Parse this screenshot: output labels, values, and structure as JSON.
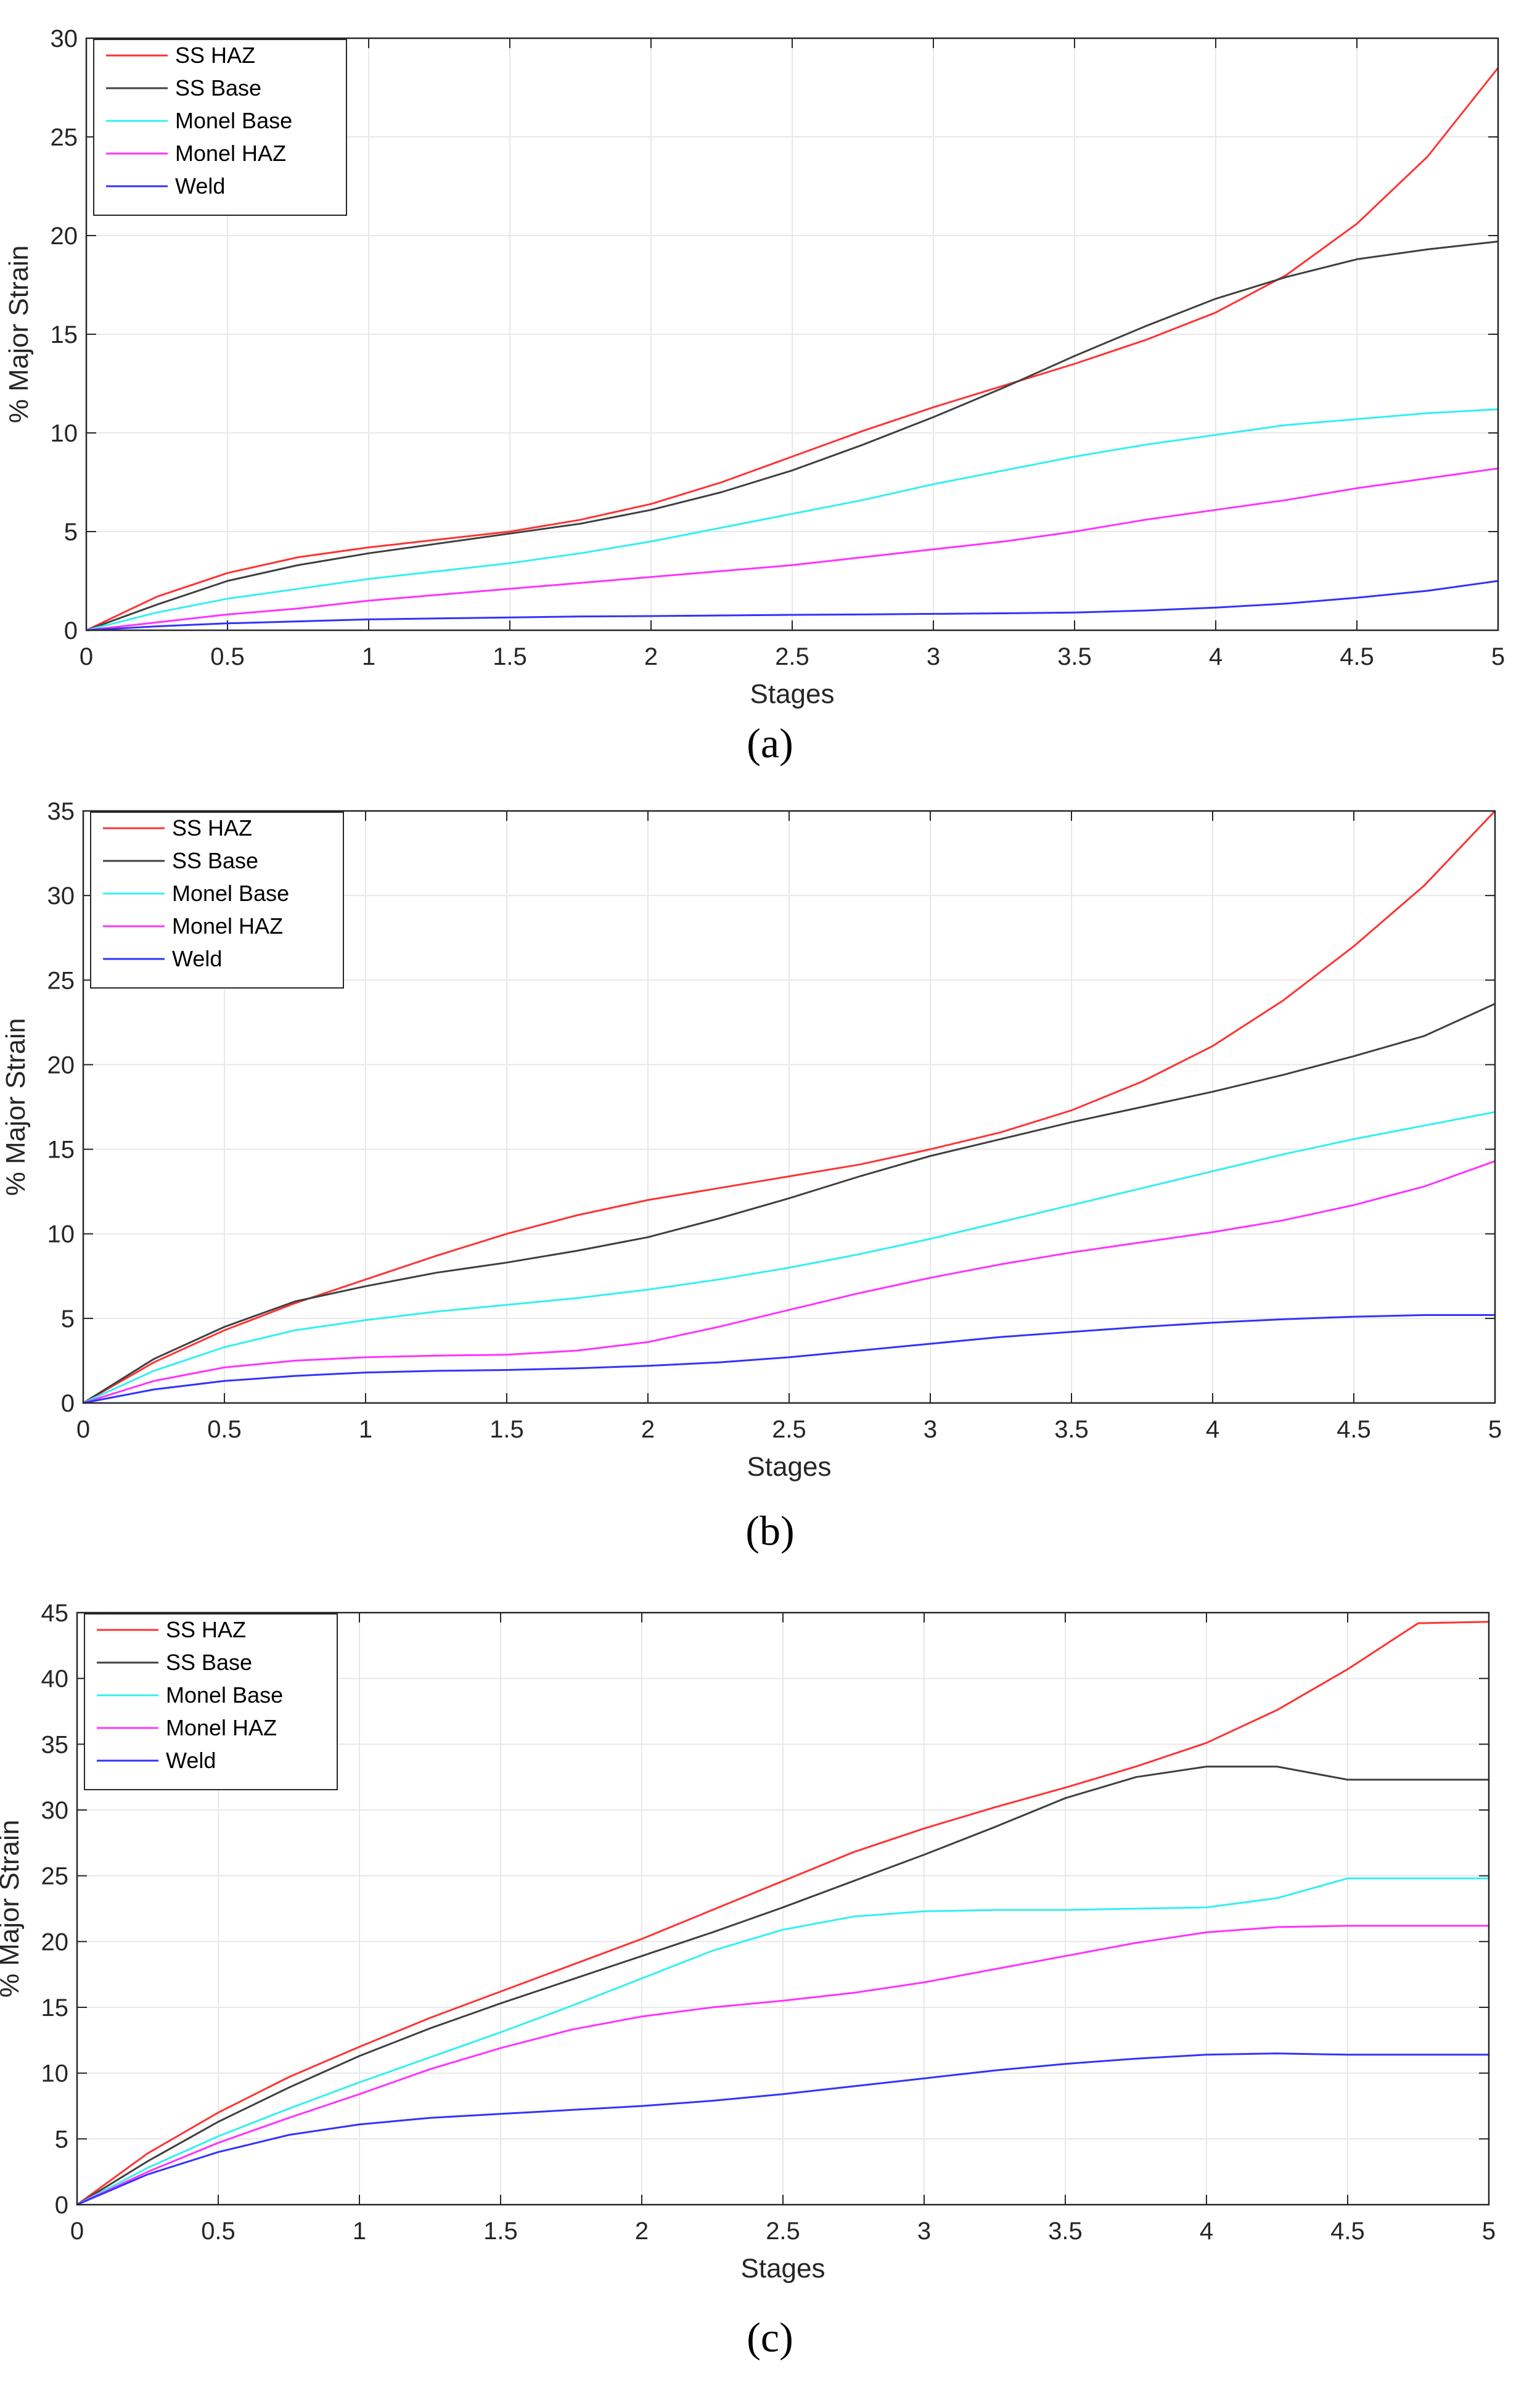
{
  "figure": {
    "panel_count": 3
  },
  "colors": {
    "SS HAZ": "#ff3333",
    "SS Base": "#404040",
    "Monel Base": "#33f0f0",
    "Monel HAZ": "#ff33ff",
    "Weld": "#3333ff",
    "grid": "#e8e8e8",
    "axis": "#262626"
  },
  "chart_data": [
    {
      "type": "line",
      "panel_label": "(a)",
      "xlabel": "Stages",
      "ylabel": "% Major Strain",
      "xlim": [
        0,
        5
      ],
      "ylim": [
        0,
        30
      ],
      "xticks": [
        0,
        0.5,
        1,
        1.5,
        2,
        2.5,
        3,
        3.5,
        4,
        4.5,
        5
      ],
      "xtick_labels": [
        "0",
        "0.5",
        "1",
        "1.5",
        "2",
        "2.5",
        "3",
        "3.5",
        "4",
        "4.5",
        "5"
      ],
      "yticks": [
        0,
        5,
        10,
        15,
        20,
        25,
        30
      ],
      "ytick_labels": [
        "0",
        "5",
        "10",
        "15",
        "20",
        "25",
        "30"
      ],
      "grid": true,
      "legend_position": "top-left",
      "x": [
        0,
        0.25,
        0.5,
        0.75,
        1,
        1.25,
        1.5,
        1.75,
        2,
        2.25,
        2.5,
        2.75,
        3,
        3.25,
        3.5,
        3.75,
        4,
        4.25,
        4.5,
        4.75,
        5
      ],
      "series": [
        {
          "name": "SS HAZ",
          "values": [
            0,
            1.7,
            2.9,
            3.7,
            4.2,
            4.6,
            5.0,
            5.6,
            6.4,
            7.5,
            8.8,
            10.1,
            11.3,
            12.4,
            13.5,
            14.7,
            16.1,
            18.0,
            20.6,
            24.0,
            28.5
          ]
        },
        {
          "name": "SS Base",
          "values": [
            0,
            1.3,
            2.5,
            3.3,
            3.9,
            4.4,
            4.9,
            5.4,
            6.1,
            7.0,
            8.1,
            9.4,
            10.8,
            12.3,
            13.9,
            15.4,
            16.8,
            17.9,
            18.8,
            19.3,
            19.7
          ]
        },
        {
          "name": "Monel Base",
          "values": [
            0,
            0.9,
            1.6,
            2.1,
            2.6,
            3.0,
            3.4,
            3.9,
            4.5,
            5.2,
            5.9,
            6.6,
            7.4,
            8.1,
            8.8,
            9.4,
            9.9,
            10.4,
            10.7,
            11.0,
            11.2
          ]
        },
        {
          "name": "Monel HAZ",
          "values": [
            0,
            0.4,
            0.8,
            1.1,
            1.5,
            1.8,
            2.1,
            2.4,
            2.7,
            3.0,
            3.3,
            3.7,
            4.1,
            4.5,
            5.0,
            5.6,
            6.1,
            6.6,
            7.2,
            7.7,
            8.2
          ]
        },
        {
          "name": "Weld",
          "values": [
            0,
            0.2,
            0.35,
            0.45,
            0.55,
            0.6,
            0.65,
            0.7,
            0.72,
            0.75,
            0.78,
            0.8,
            0.83,
            0.86,
            0.9,
            1.0,
            1.15,
            1.35,
            1.65,
            2.0,
            2.5
          ]
        }
      ]
    },
    {
      "type": "line",
      "panel_label": "(b)",
      "xlabel": "Stages",
      "ylabel": "% Major Strain",
      "xlim": [
        0,
        5
      ],
      "ylim": [
        0,
        35
      ],
      "xticks": [
        0,
        0.5,
        1,
        1.5,
        2,
        2.5,
        3,
        3.5,
        4,
        4.5,
        5
      ],
      "xtick_labels": [
        "0",
        "0.5",
        "1",
        "1.5",
        "2",
        "2.5",
        "3",
        "3.5",
        "4",
        "4.5",
        "5"
      ],
      "yticks": [
        0,
        5,
        10,
        15,
        20,
        25,
        30,
        35
      ],
      "ytick_labels": [
        "0",
        "5",
        "10",
        "15",
        "20",
        "25",
        "30",
        "35"
      ],
      "grid": true,
      "legend_position": "top-left",
      "x": [
        0,
        0.25,
        0.5,
        0.75,
        1,
        1.25,
        1.5,
        1.75,
        2,
        2.25,
        2.5,
        2.75,
        3,
        3.25,
        3.5,
        3.75,
        4,
        4.25,
        4.5,
        4.75,
        5
      ],
      "series": [
        {
          "name": "SS HAZ",
          "values": [
            0,
            2.4,
            4.3,
            5.9,
            7.3,
            8.7,
            10.0,
            11.1,
            12.0,
            12.7,
            13.4,
            14.1,
            15.0,
            16.0,
            17.3,
            19.0,
            21.1,
            23.8,
            27.0,
            30.6,
            35.0
          ]
        },
        {
          "name": "SS Base",
          "values": [
            0,
            2.6,
            4.5,
            6.0,
            6.9,
            7.7,
            8.3,
            9.0,
            9.8,
            10.9,
            12.1,
            13.4,
            14.6,
            15.6,
            16.6,
            17.5,
            18.4,
            19.4,
            20.5,
            21.7,
            23.6
          ]
        },
        {
          "name": "Monel Base",
          "values": [
            0,
            1.9,
            3.3,
            4.3,
            4.9,
            5.4,
            5.8,
            6.2,
            6.7,
            7.3,
            8.0,
            8.8,
            9.7,
            10.7,
            11.7,
            12.7,
            13.7,
            14.7,
            15.6,
            16.4,
            17.2
          ]
        },
        {
          "name": "Monel HAZ",
          "values": [
            0,
            1.3,
            2.1,
            2.5,
            2.7,
            2.8,
            2.85,
            3.1,
            3.6,
            4.5,
            5.5,
            6.5,
            7.4,
            8.2,
            8.9,
            9.5,
            10.1,
            10.8,
            11.7,
            12.8,
            14.3
          ]
        },
        {
          "name": "Weld",
          "values": [
            0,
            0.8,
            1.3,
            1.6,
            1.8,
            1.9,
            1.95,
            2.05,
            2.2,
            2.4,
            2.7,
            3.1,
            3.5,
            3.9,
            4.2,
            4.5,
            4.75,
            4.95,
            5.1,
            5.2,
            5.2
          ]
        }
      ]
    },
    {
      "type": "line",
      "panel_label": "(c)",
      "xlabel": "Stages",
      "ylabel": "% Major Strain",
      "xlim": [
        0,
        5
      ],
      "ylim": [
        0,
        45
      ],
      "xticks": [
        0,
        0.5,
        1,
        1.5,
        2,
        2.5,
        3,
        3.5,
        4,
        4.5,
        5
      ],
      "xtick_labels": [
        "0",
        "0.5",
        "1",
        "1.5",
        "2",
        "2.5",
        "3",
        "3.5",
        "4",
        "4.5",
        "5"
      ],
      "yticks": [
        0,
        5,
        10,
        15,
        20,
        25,
        30,
        35,
        40,
        45
      ],
      "ytick_labels": [
        "0",
        "5",
        "10",
        "15",
        "20",
        "25",
        "30",
        "35",
        "40",
        "45"
      ],
      "grid": true,
      "legend_position": "top-left",
      "x": [
        0,
        0.25,
        0.5,
        0.75,
        1,
        1.25,
        1.5,
        1.75,
        2,
        2.25,
        2.5,
        2.75,
        3,
        3.25,
        3.5,
        3.75,
        4,
        4.25,
        4.5,
        4.75,
        5
      ],
      "series": [
        {
          "name": "SS HAZ",
          "values": [
            0,
            3.9,
            7.0,
            9.7,
            12.0,
            14.2,
            16.2,
            18.2,
            20.2,
            22.4,
            24.6,
            26.8,
            28.6,
            30.2,
            31.7,
            33.3,
            35.1,
            37.6,
            40.7,
            44.2,
            44.3
          ]
        },
        {
          "name": "SS Base",
          "values": [
            0,
            3.3,
            6.3,
            8.9,
            11.3,
            13.4,
            15.3,
            17.1,
            18.9,
            20.7,
            22.6,
            24.6,
            26.6,
            28.7,
            30.9,
            32.5,
            33.3,
            33.3,
            32.3,
            32.3,
            32.3
          ]
        },
        {
          "name": "Monel Base",
          "values": [
            0,
            2.8,
            5.2,
            7.3,
            9.3,
            11.2,
            13.1,
            15.1,
            17.2,
            19.3,
            20.9,
            21.9,
            22.3,
            22.4,
            22.4,
            22.5,
            22.6,
            23.3,
            24.8,
            24.8,
            24.8
          ]
        },
        {
          "name": "Monel HAZ",
          "values": [
            0,
            2.5,
            4.7,
            6.6,
            8.4,
            10.3,
            11.9,
            13.3,
            14.3,
            15.0,
            15.5,
            16.1,
            16.9,
            17.9,
            18.9,
            19.9,
            20.7,
            21.1,
            21.2,
            21.2,
            21.2
          ]
        },
        {
          "name": "Weld",
          "values": [
            0,
            2.3,
            4.0,
            5.3,
            6.1,
            6.6,
            6.9,
            7.2,
            7.5,
            7.9,
            8.4,
            9.0,
            9.6,
            10.2,
            10.7,
            11.1,
            11.4,
            11.5,
            11.4,
            11.4,
            11.4
          ]
        }
      ]
    }
  ]
}
